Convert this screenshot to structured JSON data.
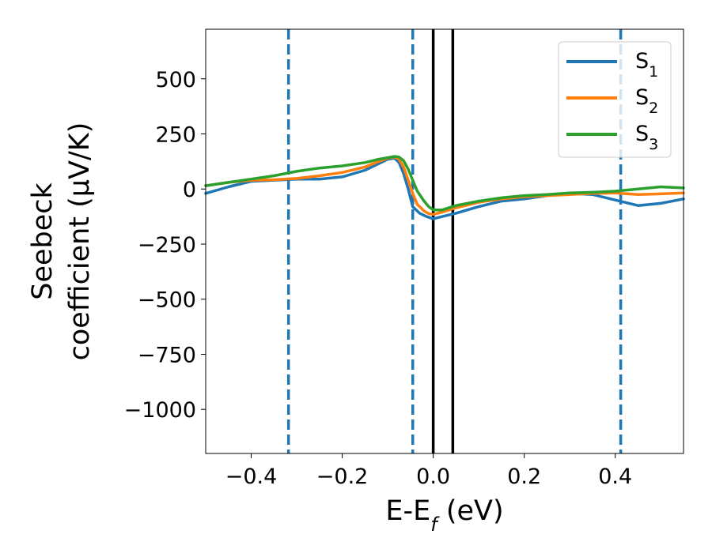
{
  "chart_data": {
    "type": "line",
    "title": "",
    "xlabel": {
      "main": "E-E",
      "sub": "f",
      "suffix": " (eV)"
    },
    "ylabel": {
      "line1": "Seebeck",
      "line2": "coefficient  (μV/K)"
    },
    "xlim": [
      -0.5,
      0.55
    ],
    "ylim": [
      -1200,
      725
    ],
    "xticks": [
      -0.4,
      -0.2,
      0.0,
      0.2,
      0.4
    ],
    "xtick_labels": [
      "−0.4",
      "−0.2",
      "0.0",
      "0.2",
      "0.4"
    ],
    "yticks": [
      500,
      250,
      0,
      -250,
      -500,
      -750,
      -1000
    ],
    "ytick_labels": [
      "500",
      "250",
      "0",
      "−250",
      "−500",
      "−750",
      "−1000"
    ],
    "grid": false,
    "legend": {
      "placement": "top-right",
      "entries": [
        {
          "base": "S",
          "sub": "1"
        },
        {
          "base": "S",
          "sub": "2"
        },
        {
          "base": "S",
          "sub": "3"
        }
      ]
    },
    "colors": {
      "S1": "#1f77b4",
      "S2": "#ff7f0e",
      "S3": "#2ca02c",
      "solid_vline": "#000000",
      "dashed_vline": "#1f77b4"
    },
    "vlines_solid": [
      0.0,
      0.043
    ],
    "vlines_dashed": [
      -0.318,
      -0.045,
      0.412
    ],
    "series": [
      {
        "name": "S1",
        "color": "#1f77b4",
        "x": [
          -0.5,
          -0.45,
          -0.4,
          -0.35,
          -0.3,
          -0.25,
          -0.2,
          -0.15,
          -0.12,
          -0.1,
          -0.085,
          -0.075,
          -0.065,
          -0.055,
          -0.045,
          -0.03,
          -0.015,
          0.0,
          0.02,
          0.05,
          0.1,
          0.15,
          0.2,
          0.25,
          0.3,
          0.35,
          0.4,
          0.45,
          0.5,
          0.55
        ],
        "y": [
          -20,
          10,
          35,
          40,
          45,
          45,
          55,
          85,
          115,
          135,
          140,
          120,
          70,
          0,
          -80,
          -110,
          -125,
          -135,
          -125,
          -110,
          -80,
          -55,
          -45,
          -30,
          -20,
          -25,
          -50,
          -75,
          -65,
          -45
        ]
      },
      {
        "name": "S2",
        "color": "#ff7f0e",
        "x": [
          -0.5,
          -0.45,
          -0.4,
          -0.35,
          -0.3,
          -0.25,
          -0.2,
          -0.15,
          -0.12,
          -0.1,
          -0.085,
          -0.075,
          -0.065,
          -0.055,
          -0.045,
          -0.035,
          -0.02,
          -0.01,
          0.0,
          0.02,
          0.05,
          0.1,
          0.15,
          0.2,
          0.25,
          0.3,
          0.35,
          0.4,
          0.45,
          0.5,
          0.55
        ],
        "y": [
          15,
          30,
          40,
          42,
          48,
          60,
          75,
          100,
          125,
          140,
          145,
          135,
          100,
          40,
          -20,
          -70,
          -100,
          -112,
          -115,
          -105,
          -85,
          -60,
          -45,
          -35,
          -30,
          -25,
          -20,
          -18,
          -25,
          -22,
          -18
        ]
      },
      {
        "name": "S3",
        "color": "#2ca02c",
        "x": [
          -0.5,
          -0.45,
          -0.4,
          -0.35,
          -0.3,
          -0.25,
          -0.2,
          -0.15,
          -0.12,
          -0.1,
          -0.085,
          -0.075,
          -0.065,
          -0.055,
          -0.045,
          -0.035,
          -0.02,
          -0.01,
          0.0,
          0.02,
          0.05,
          0.1,
          0.15,
          0.2,
          0.25,
          0.3,
          0.35,
          0.4,
          0.45,
          0.5,
          0.55
        ],
        "y": [
          15,
          30,
          45,
          60,
          80,
          95,
          105,
          120,
          135,
          142,
          148,
          145,
          128,
          90,
          40,
          -10,
          -55,
          -80,
          -95,
          -95,
          -75,
          -55,
          -40,
          -30,
          -25,
          -18,
          -15,
          -10,
          0,
          10,
          5
        ]
      }
    ]
  }
}
